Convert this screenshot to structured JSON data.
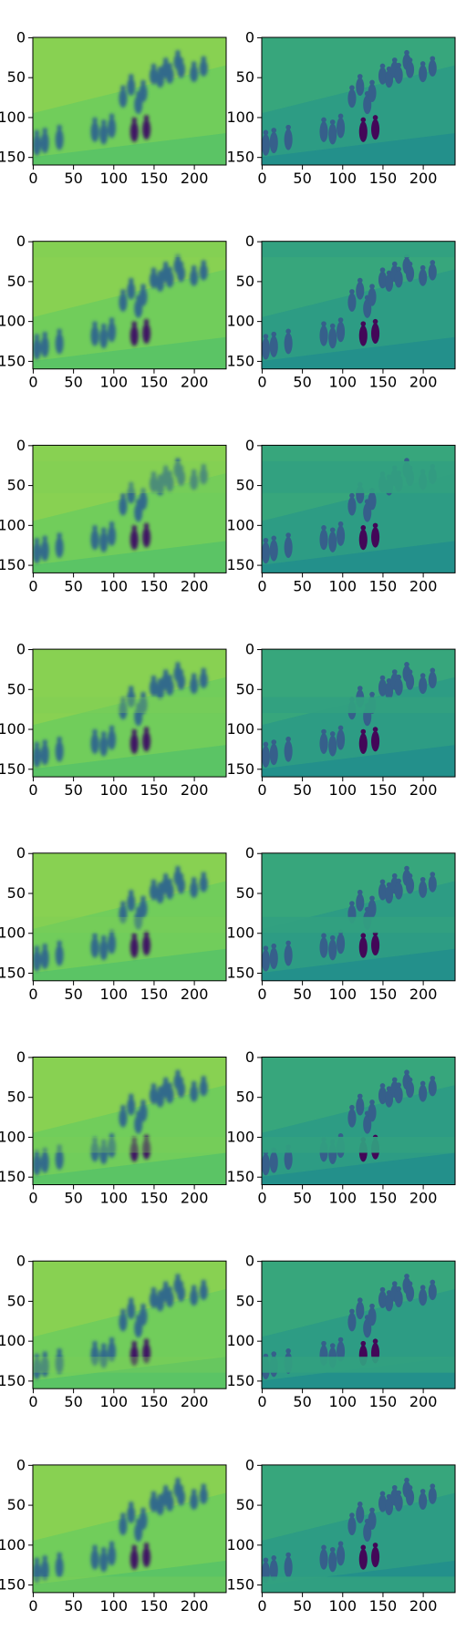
{
  "chart_data": {
    "type": "image-grid",
    "layout": {
      "rows": 8,
      "cols": 2
    },
    "colormap": "viridis",
    "image_shape": {
      "width": 240,
      "height": 160
    },
    "x_ticks": [
      0,
      50,
      100,
      150,
      200
    ],
    "y_ticks": [
      0,
      50,
      100,
      150
    ],
    "xlim": [
      0,
      240
    ],
    "ylim": [
      160,
      0
    ],
    "columns": [
      {
        "description": "blurred reconstruction",
        "background_level": 0.78
      },
      {
        "description": "reconstruction with horizontal band artifact",
        "background_level": 0.55
      }
    ],
    "rows": [
      {
        "band": null
      },
      {
        "band": [
          0,
          20
        ]
      },
      {
        "band": [
          20,
          60
        ]
      },
      {
        "band": [
          60,
          80
        ]
      },
      {
        "band": [
          80,
          100
        ]
      },
      {
        "band": [
          100,
          120
        ]
      },
      {
        "band": [
          120,
          140
        ]
      },
      {
        "band": [
          140,
          160
        ]
      }
    ],
    "figures": [
      [
        5,
        147
      ],
      [
        15,
        144
      ],
      [
        33,
        140
      ],
      [
        77,
        130
      ],
      [
        88,
        133
      ],
      [
        98,
        125
      ],
      [
        112,
        87
      ],
      [
        122,
        72
      ],
      [
        126,
        130
      ],
      [
        141,
        127
      ],
      [
        131,
        95
      ],
      [
        137,
        80
      ],
      [
        150,
        58
      ],
      [
        158,
        62
      ],
      [
        165,
        50
      ],
      [
        170,
        57
      ],
      [
        180,
        40
      ],
      [
        184,
        50
      ],
      [
        200,
        55
      ],
      [
        212,
        48
      ]
    ]
  }
}
